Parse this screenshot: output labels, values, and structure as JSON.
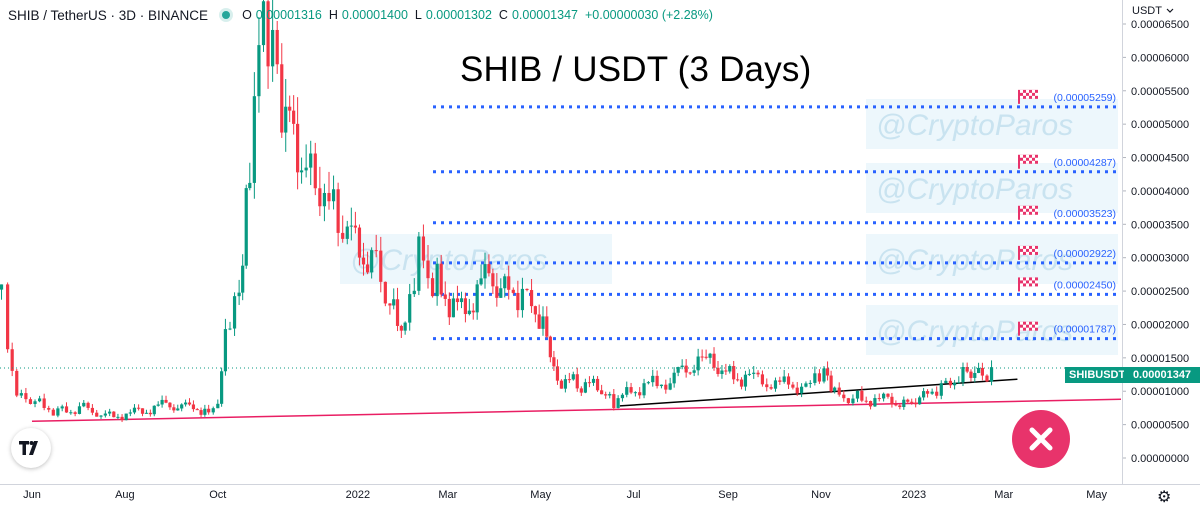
{
  "header": {
    "symbol": "SHIB / TetherUS · 3D · BINANCE",
    "o_label": "O",
    "o_value": "0.00001316",
    "h_label": "H",
    "h_value": "0.00001400",
    "l_label": "L",
    "l_value": "0.00001302",
    "c_label": "C",
    "c_value": "0.00001347",
    "change": "+0.00000030 (+2.28%)"
  },
  "currency": "USDT",
  "title": "SHIB / USDT (3 Days)",
  "watermark": "@CryptoParos",
  "symbol_tag": "SHIBUSDT",
  "last_price": "0.00001347",
  "icons": {
    "logo": "tradingview-logo-icon",
    "close": "close-x-icon",
    "settings": "gear-icon",
    "dropdown": "chevron-down-icon",
    "flag": "checkered-flag-icon"
  },
  "colors": {
    "up": "#089981",
    "down": "#f23645",
    "target": "#2962ff",
    "support": "#e91e63",
    "trend": "#000000",
    "badge": "#e8336b"
  },
  "chart_data": {
    "type": "candlestick",
    "title": "SHIB / USDT (3 Days)",
    "ylim": [
      0,
      7e-05
    ],
    "y_ticks": [
      "0.00006500",
      "0.00006000",
      "0.00005500",
      "0.00005000",
      "0.00004500",
      "0.00004000",
      "0.00003500",
      "0.00003000",
      "0.00002500",
      "0.00002000",
      "0.00001500",
      "0.00001000",
      "0.00000500",
      "0.00000000"
    ],
    "y_tick_values": [
      6.5e-05,
      6e-05,
      5.5e-05,
      5e-05,
      4.5e-05,
      4e-05,
      3.5e-05,
      3e-05,
      2.5e-05,
      2e-05,
      1.5e-05,
      1e-05,
      5e-06,
      0
    ],
    "x_ticks": [
      "Jun",
      "Aug",
      "Oct",
      "2022",
      "Mar",
      "May",
      "Jul",
      "Sep",
      "Nov",
      "2023",
      "Mar",
      "May"
    ],
    "x_tick_dates": [
      "2021-06-01",
      "2021-08-01",
      "2021-10-01",
      "2022-01-01",
      "2022-03-01",
      "2022-05-01",
      "2022-07-01",
      "2022-09-01",
      "2022-11-01",
      "2023-01-01",
      "2023-03-01",
      "2023-05-01"
    ],
    "x_range": [
      "2021-05-11",
      "2023-05-17"
    ],
    "price_series": [
      [
        "2021-05-12",
        2.5e-05
      ],
      [
        "2021-05-16",
        1.55e-05
      ],
      [
        "2021-05-22",
        9e-06
      ],
      [
        "2021-06-03",
        8.2e-06
      ],
      [
        "2021-06-18",
        7e-06
      ],
      [
        "2021-07-05",
        7.5e-06
      ],
      [
        "2021-07-22",
        6.2e-06
      ],
      [
        "2021-08-10",
        6.8e-06
      ],
      [
        "2021-08-28",
        8e-06
      ],
      [
        "2021-09-15",
        7.5e-06
      ],
      [
        "2021-09-25",
        7.2e-06
      ],
      [
        "2021-10-01",
        8.5e-06
      ],
      [
        "2021-10-06",
        2e-05
      ],
      [
        "2021-10-15",
        2.6e-05
      ],
      [
        "2021-10-22",
        4.5e-05
      ],
      [
        "2021-10-28",
        7e-05
      ],
      [
        "2021-11-03",
        6.6e-05
      ],
      [
        "2021-11-12",
        5.2e-05
      ],
      [
        "2021-11-25",
        4.3e-05
      ],
      [
        "2021-12-10",
        3.8e-05
      ],
      [
        "2021-12-25",
        3.3e-05
      ],
      [
        "2022-01-10",
        3e-05
      ],
      [
        "2022-01-22",
        2.2e-05
      ],
      [
        "2022-02-01",
        1.9e-05
      ],
      [
        "2022-02-10",
        3e-05
      ],
      [
        "2022-02-22",
        2.6e-05
      ],
      [
        "2022-03-10",
        2.2e-05
      ],
      [
        "2022-03-28",
        2.7e-05
      ],
      [
        "2022-04-10",
        2.6e-05
      ],
      [
        "2022-04-25",
        2.4e-05
      ],
      [
        "2022-05-05",
        1.9e-05
      ],
      [
        "2022-05-12",
        1.2e-05
      ],
      [
        "2022-05-25",
        1.1e-05
      ],
      [
        "2022-06-10",
        1.05e-05
      ],
      [
        "2022-06-18",
        8.5e-06
      ],
      [
        "2022-07-05",
        1.05e-05
      ],
      [
        "2022-07-25",
        1.18e-05
      ],
      [
        "2022-08-15",
        1.5e-05
      ],
      [
        "2022-08-28",
        1.25e-05
      ],
      [
        "2022-09-15",
        1.2e-05
      ],
      [
        "2022-10-05",
        1.1e-05
      ],
      [
        "2022-10-25",
        1.08e-05
      ],
      [
        "2022-11-03",
        1.25e-05
      ],
      [
        "2022-11-10",
        9.5e-06
      ],
      [
        "2022-11-25",
        9e-06
      ],
      [
        "2022-12-15",
        8.5e-06
      ],
      [
        "2022-12-28",
        8.3e-06
      ],
      [
        "2023-01-10",
        1e-05
      ],
      [
        "2023-01-25",
        1.15e-05
      ],
      [
        "2023-02-05",
        1.35e-05
      ],
      [
        "2023-02-15",
        1.28e-05
      ],
      [
        "2023-02-24",
        1.35e-05
      ]
    ],
    "target_levels": [
      "0.00005259",
      "0.00004287",
      "0.00003523",
      "0.00002922",
      "0.00002450",
      "0.00001787"
    ],
    "target_values": [
      5.259e-05,
      4.287e-05,
      3.523e-05,
      2.922e-05,
      2.45e-05,
      1.787e-05
    ],
    "trendlines": [
      {
        "name": "support",
        "from": [
          "2021-06-01",
          5.5e-06
        ],
        "to": [
          "2023-05-17",
          8.8e-06
        ]
      },
      {
        "name": "trend",
        "from": [
          "2022-06-22",
          7.8e-06
        ],
        "to": [
          "2023-03-10",
          1.18e-05
        ]
      }
    ],
    "last_value": 1.347e-05
  }
}
